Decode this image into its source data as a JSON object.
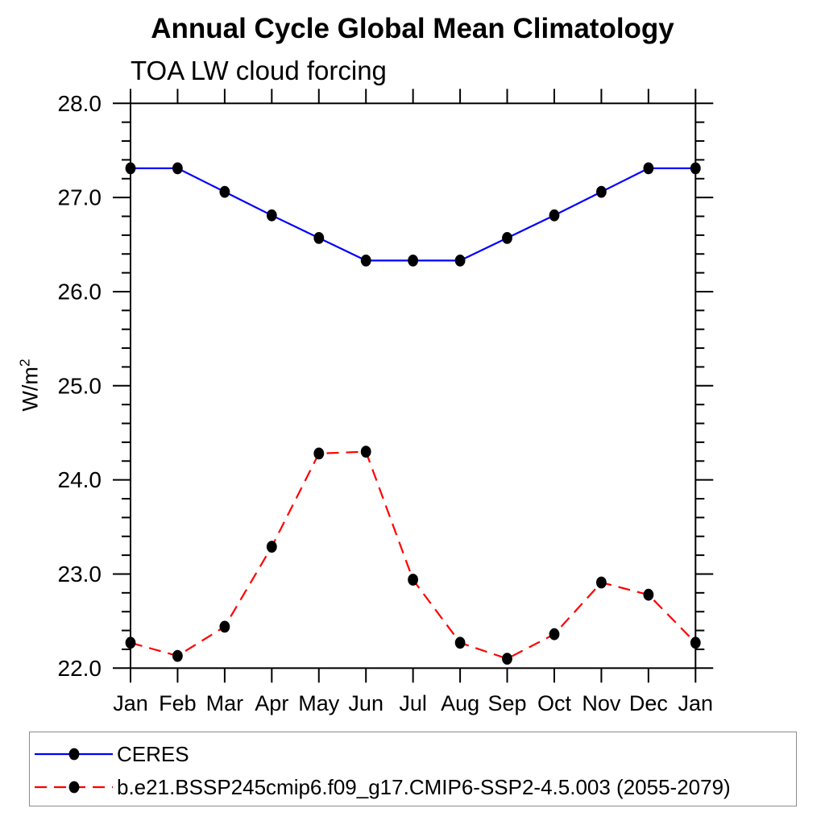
{
  "header": {
    "title": "Annual Cycle Global Mean Climatology",
    "subtitle": "TOA LW cloud forcing"
  },
  "chart_data": {
    "type": "line",
    "title": "Annual Cycle Global Mean Climatology",
    "subtitle": "TOA LW cloud forcing",
    "ylabel": "W/m²",
    "ylabel_base": "W/m",
    "ylabel_exponent": "2",
    "categories": [
      "Jan",
      "Feb",
      "Mar",
      "Apr",
      "May",
      "Jun",
      "Jul",
      "Aug",
      "Sep",
      "Oct",
      "Nov",
      "Dec",
      "Jan"
    ],
    "ylim": [
      22.0,
      28.0
    ],
    "ytick_values": [
      22,
      23,
      24,
      25,
      26,
      27,
      28
    ],
    "ytick_labels": [
      "22.0",
      "23.0",
      "24.0",
      "25.0",
      "26.0",
      "27.0",
      "28.0"
    ],
    "ytick_minor_interval": 0.2,
    "grid": false,
    "legend_position": "bottom",
    "axis_color": "#000000",
    "marker_color": "#000000",
    "series": [
      {
        "name": "CERES",
        "color": "#0000ff",
        "line_style": "solid",
        "marker": "dot",
        "values": [
          27.31,
          27.31,
          27.06,
          26.81,
          26.57,
          26.33,
          26.33,
          26.33,
          26.57,
          26.81,
          27.06,
          27.31,
          27.31
        ]
      },
      {
        "name": "b.e21.BSSP245cmip6.f09_g17.CMIP6-SSP2-4.5.003 (2055-2079)",
        "color": "#ff0000",
        "line_style": "dashed",
        "marker": "dot",
        "values": [
          22.27,
          22.13,
          22.44,
          23.29,
          24.28,
          24.3,
          22.94,
          22.27,
          22.1,
          22.36,
          22.91,
          22.78,
          22.27
        ]
      }
    ]
  },
  "legend": {
    "entries": [
      {
        "label": "CERES",
        "color": "#0000ff",
        "style": "solid"
      },
      {
        "label": "b.e21.BSSP245cmip6.f09_g17.CMIP6-SSP2-4.5.003 (2055-2079)",
        "color": "#ff0000",
        "style": "dashed"
      }
    ]
  }
}
